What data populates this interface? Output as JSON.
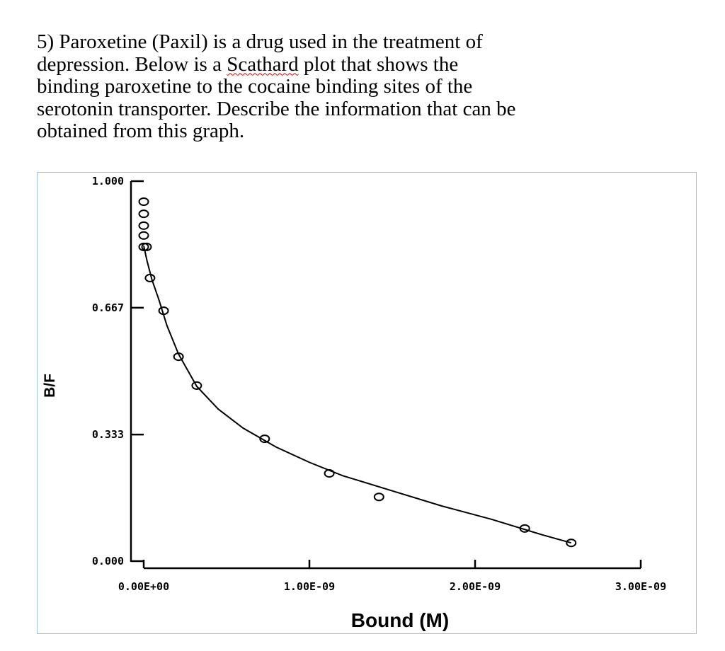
{
  "question": {
    "lines": [
      [
        "5) Paroxetine (Paxil) is a drug used in the treatment of",
        "",
        ""
      ],
      [
        "depression.  Below is a ",
        "Scathard",
        " plot that shows the"
      ],
      [
        "binding paroxetine to the cocaine binding sites of the",
        "",
        ""
      ],
      [
        "serotonin transporter.  Describe the information that can be",
        "",
        ""
      ],
      [
        "obtained from this graph.",
        "",
        ""
      ]
    ]
  },
  "chart_data": {
    "type": "scatter",
    "title": "",
    "xlabel": "Bound (M)",
    "ylabel": "B/F",
    "xlim": [
      0,
      3e-09
    ],
    "ylim": [
      0,
      1.0
    ],
    "xticks": [
      0,
      1e-09,
      2e-09,
      3e-09
    ],
    "xtick_labels": [
      "0.00E+00",
      "1.00E-09",
      "2.00E-09",
      "3.00E-09"
    ],
    "yticks": [
      0,
      0.333,
      0.667,
      1.0
    ],
    "ytick_labels": [
      "0.000",
      "0.333",
      "0.667",
      "1.000"
    ],
    "grid": false,
    "series": [
      {
        "name": "data",
        "marker": "open-circle",
        "x": [
          0,
          0,
          0,
          0,
          0,
          1.7e-11,
          3.8e-11,
          1.2e-10,
          2.1e-10,
          3.2e-10,
          7.3e-10,
          1.12e-09,
          1.42e-09,
          2.3e-09,
          2.58e-09
        ],
        "y": [
          0.946,
          0.914,
          0.883,
          0.857,
          0.827,
          0.827,
          0.745,
          0.659,
          0.538,
          0.462,
          0.322,
          0.231,
          0.169,
          0.086,
          0.048
        ]
      },
      {
        "name": "fit",
        "line": "solid",
        "x": [
          0.0,
          2e-11,
          5e-11,
          9e-11,
          1.4e-10,
          2.1e-10,
          3.2e-10,
          4.5e-10,
          6e-10,
          8e-10,
          1e-09,
          1.2e-09,
          1.5e-09,
          1.8e-09,
          2.1e-09,
          2.4e-09,
          2.58e-09
        ],
        "y": [
          0.83,
          0.79,
          0.74,
          0.69,
          0.62,
          0.545,
          0.46,
          0.4,
          0.35,
          0.3,
          0.26,
          0.225,
          0.185,
          0.145,
          0.11,
          0.07,
          0.048
        ]
      }
    ]
  }
}
